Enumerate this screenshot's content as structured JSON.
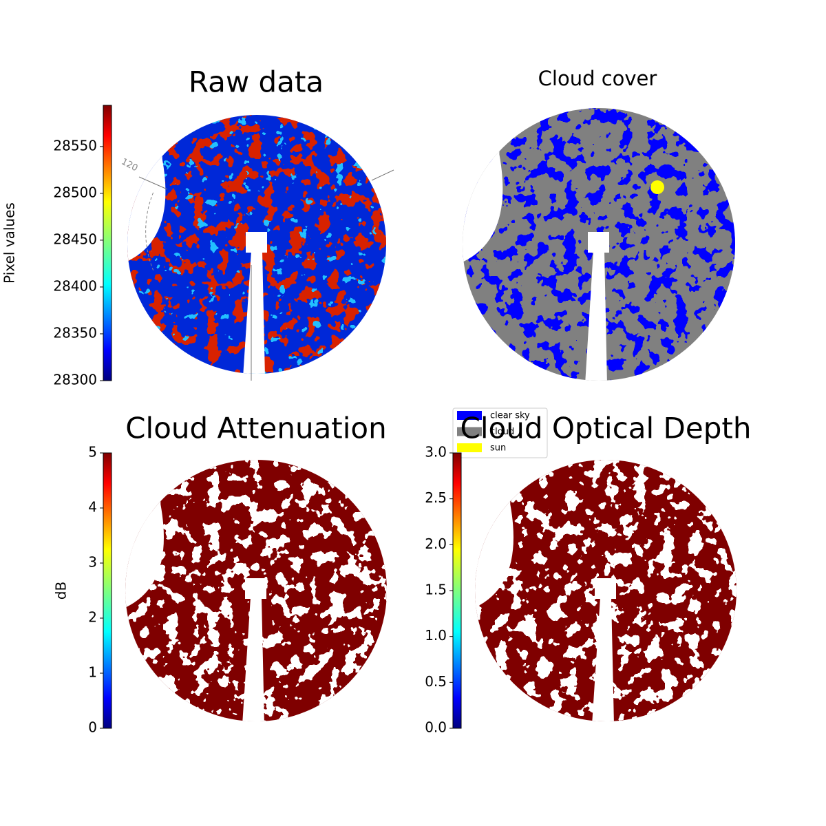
{
  "chart_data": [
    {
      "type": "image",
      "title": "Raw data",
      "colormap": "jet",
      "ylabel": "Pixel values",
      "ylim": [
        28300,
        28594
      ],
      "yticks": [
        28300,
        28350,
        28400,
        28450,
        28500,
        28550
      ],
      "annotations": [
        "120"
      ]
    },
    {
      "type": "image",
      "title": "Cloud cover",
      "legend": "lower left",
      "series": [
        {
          "name": "clear sky",
          "color": "#0000ff"
        },
        {
          "name": "cloud",
          "color": "#808080"
        },
        {
          "name": "sun",
          "color": "#ffff00"
        }
      ]
    },
    {
      "type": "image",
      "title": "Cloud Attenuation",
      "colormap": "jet",
      "ylabel": "dB",
      "ylim": [
        0,
        5
      ],
      "yticks": [
        0,
        1,
        2,
        3,
        4,
        5
      ]
    },
    {
      "type": "image",
      "title": "Cloud Optical Depth",
      "colormap": "jet",
      "ylim": [
        0,
        3
      ],
      "yticks": [
        {
          "value": 0,
          "label": "0.0"
        },
        0.5,
        {
          "value": 1,
          "label": "1.0"
        },
        1.5,
        {
          "value": 2,
          "label": "2.0"
        },
        2.5,
        {
          "value": 3,
          "label": "3.0"
        }
      ]
    }
  ]
}
